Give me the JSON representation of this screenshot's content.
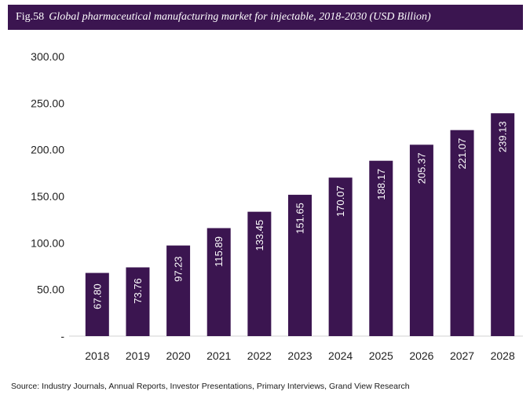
{
  "header": {
    "fig_label": "Fig.58",
    "title": "Global pharmaceutical manufacturing market for injectable, 2018-2030 (USD Billion)"
  },
  "source": "Source: Industry Journals, Annual Reports, Investor Presentations, Primary Interviews, Grand View Research",
  "colors": {
    "bar": "#3b1550",
    "title_bg": "#3b1550",
    "bar_label": "#ffffff",
    "axis_text": "#222222"
  },
  "chart_data": {
    "type": "bar",
    "title": "Global pharmaceutical manufacturing market for injectable, 2018-2030 (USD Billion)",
    "categories": [
      "2018",
      "2019",
      "2020",
      "2021",
      "2022",
      "2023",
      "2024",
      "2025",
      "2026",
      "2027",
      "2028"
    ],
    "values": [
      67.8,
      73.76,
      97.23,
      115.89,
      133.45,
      151.65,
      170.07,
      188.17,
      205.37,
      221.07,
      239.13
    ],
    "value_labels": [
      "67.80",
      "73.76",
      "97.23",
      "115.89",
      "133.45",
      "151.65",
      "170.07",
      "188.17",
      "205.37",
      "221.07",
      "239.13"
    ],
    "y_ticks": [
      "-",
      "50.00",
      "100.00",
      "150.00",
      "200.00",
      "250.00",
      "300.00"
    ],
    "y_tick_values": [
      0,
      50,
      100,
      150,
      200,
      250,
      300
    ],
    "ylim": [
      0,
      300
    ],
    "xlabel": "",
    "ylabel": "",
    "grid": false,
    "legend": "none"
  }
}
